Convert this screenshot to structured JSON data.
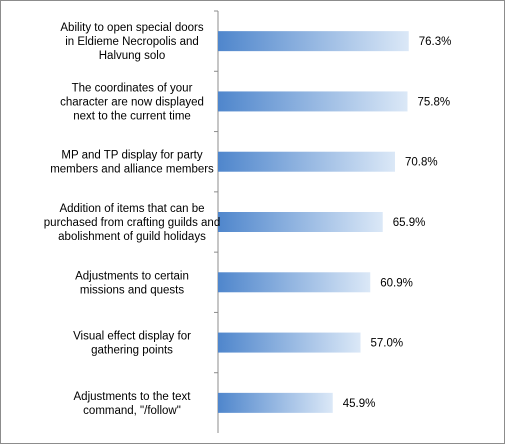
{
  "chart_data": {
    "type": "bar",
    "orientation": "horizontal",
    "categories": [
      [
        "Ability to open special doors",
        "in Eldieme Necropolis and",
        "Halvung solo"
      ],
      [
        "The coordinates of your",
        "character are now displayed",
        "next to the current time"
      ],
      [
        "MP and TP display for party",
        "members and alliance members"
      ],
      [
        "Addition of items that can be",
        "purchased from crafting guilds and",
        "abolishment of guild holidays"
      ],
      [
        "Adjustments to certain",
        "missions and quests"
      ],
      [
        "Visual effect display for",
        "gathering points"
      ],
      [
        "Adjustments to the text",
        "command, \"/follow\""
      ]
    ],
    "values": [
      76.3,
      75.8,
      70.8,
      65.9,
      60.9,
      57.0,
      45.9
    ],
    "value_labels": [
      "76.3%",
      "75.8%",
      "70.8%",
      "65.9%",
      "60.9%",
      "57.0%",
      "45.9%"
    ],
    "xlim": [
      0,
      100
    ],
    "grid": false,
    "legend": "none",
    "colors": {
      "bar_start": "#4f86cc",
      "bar_end": "#dbe8f7",
      "axis": "#8c8c8c"
    }
  }
}
